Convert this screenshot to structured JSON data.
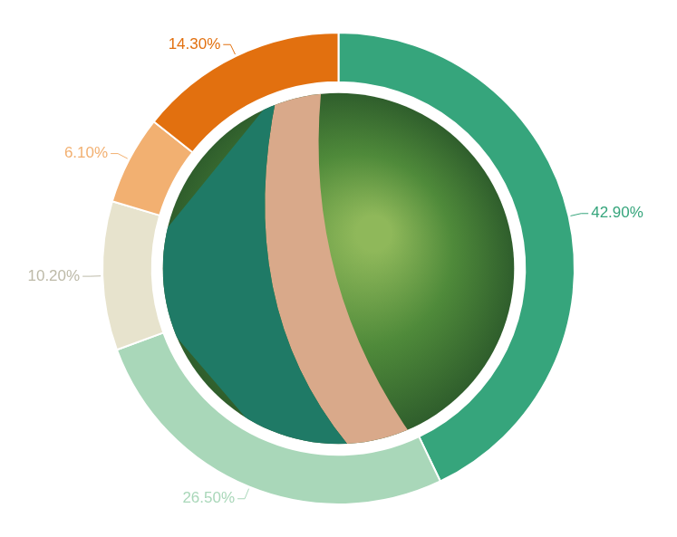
{
  "chart_data": {
    "type": "doughnut",
    "values": [
      42.9,
      26.5,
      10.2,
      6.1,
      14.3
    ],
    "value_labels": [
      "42.90%",
      "26.50%",
      "10.20%",
      "6.10%",
      "14.30%"
    ],
    "colors": [
      "#36a57c",
      "#a9d7b9",
      "#e7e3cd",
      "#f2b071",
      "#e2700f"
    ],
    "data_labels": true
  }
}
